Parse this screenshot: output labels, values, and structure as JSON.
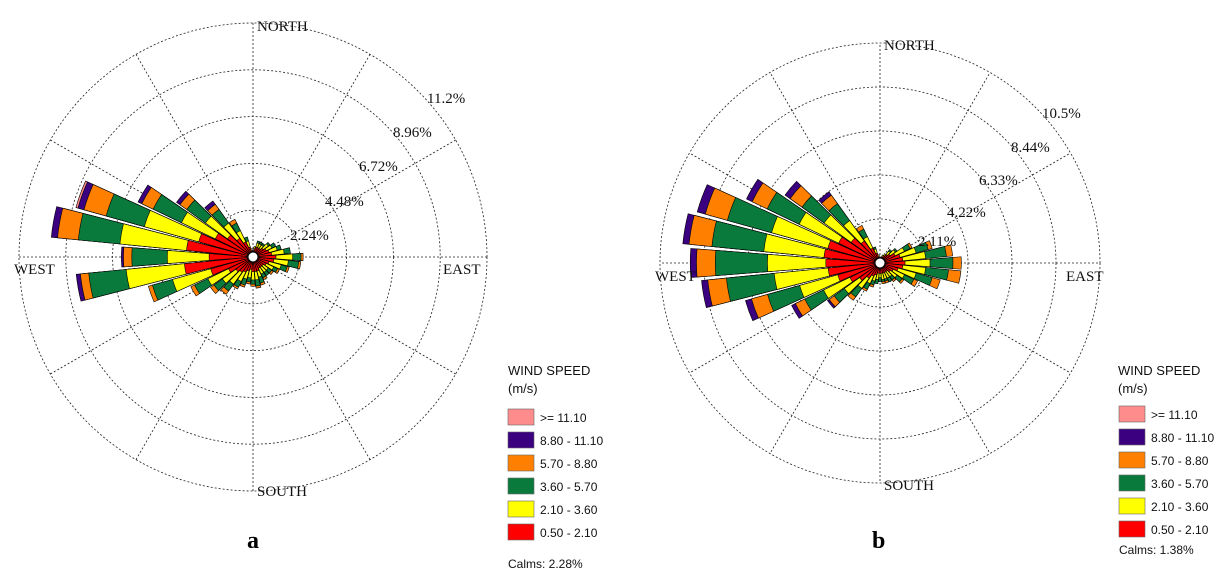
{
  "chart_data": [
    {
      "type": "windrose",
      "panel_label": "a",
      "direction_labels": {
        "north": "NORTH",
        "south": "SOUTH",
        "east": "EAST",
        "west": "WEST"
      },
      "ring_labels": [
        "2.24%",
        "4.48%",
        "6.72%",
        "8.96%",
        "11.2%"
      ],
      "rmax": 11.2,
      "legend_title": "WIND SPEED",
      "legend_unit": "(m/s)",
      "legend": [
        ">= 11.10",
        "8.80 - 11.10",
        "5.70 - 8.80",
        "3.60 - 5.70",
        "2.10 - 3.60",
        "0.50 - 2.10"
      ],
      "calms": "Calms: 2.28%",
      "sector_width_deg": 10,
      "sectors_cumulative_pct": [
        {
          "dir": 0,
          "cum": [
            0.3,
            0.3,
            0.3,
            0.3,
            0.3,
            0.3
          ]
        },
        {
          "dir": 10,
          "cum": [
            0.4,
            0.5,
            0.5,
            0.5,
            0.5,
            0.5
          ]
        },
        {
          "dir": 20,
          "cum": [
            0.5,
            0.7,
            0.8,
            0.8,
            0.8,
            0.8
          ]
        },
        {
          "dir": 30,
          "cum": [
            0.5,
            0.7,
            0.8,
            0.8,
            0.8,
            0.8
          ]
        },
        {
          "dir": 40,
          "cum": [
            0.5,
            0.7,
            0.8,
            0.8,
            0.8,
            0.8
          ]
        },
        {
          "dir": 50,
          "cum": [
            0.6,
            0.9,
            1.0,
            1.0,
            1.0,
            1.0
          ]
        },
        {
          "dir": 60,
          "cum": [
            0.7,
            1.0,
            1.2,
            1.2,
            1.2,
            1.2
          ]
        },
        {
          "dir": 70,
          "cum": [
            0.8,
            1.2,
            1.4,
            1.4,
            1.4,
            1.4
          ]
        },
        {
          "dir": 80,
          "cum": [
            0.9,
            1.5,
            1.8,
            1.8,
            1.8,
            1.8
          ]
        },
        {
          "dir": 90,
          "cum": [
            1.1,
            1.9,
            2.3,
            2.4,
            2.4,
            2.4
          ]
        },
        {
          "dir": 100,
          "cum": [
            1.0,
            1.7,
            2.2,
            2.3,
            2.3,
            2.3
          ]
        },
        {
          "dir": 110,
          "cum": [
            0.8,
            1.4,
            1.7,
            1.8,
            1.8,
            1.8
          ]
        },
        {
          "dir": 120,
          "cum": [
            0.7,
            1.1,
            1.3,
            1.4,
            1.4,
            1.4
          ]
        },
        {
          "dir": 130,
          "cum": [
            0.6,
            0.9,
            1.1,
            1.2,
            1.2,
            1.2
          ]
        },
        {
          "dir": 140,
          "cum": [
            0.6,
            0.9,
            1.1,
            1.1,
            1.1,
            1.1
          ]
        },
        {
          "dir": 150,
          "cum": [
            0.6,
            0.9,
            1.1,
            1.2,
            1.2,
            1.2
          ]
        },
        {
          "dir": 160,
          "cum": [
            0.7,
            1.0,
            1.3,
            1.4,
            1.4,
            1.4
          ]
        },
        {
          "dir": 170,
          "cum": [
            0.7,
            1.1,
            1.4,
            1.5,
            1.5,
            1.5
          ]
        },
        {
          "dir": 180,
          "cum": [
            0.7,
            1.1,
            1.3,
            1.4,
            1.4,
            1.4
          ]
        },
        {
          "dir": 190,
          "cum": [
            0.6,
            1.0,
            1.2,
            1.3,
            1.3,
            1.3
          ]
        },
        {
          "dir": 200,
          "cum": [
            0.7,
            1.1,
            1.4,
            1.5,
            1.5,
            1.5
          ]
        },
        {
          "dir": 210,
          "cum": [
            0.8,
            1.3,
            1.6,
            1.7,
            1.7,
            1.7
          ]
        },
        {
          "dir": 220,
          "cum": [
            0.9,
            1.6,
            2.0,
            2.2,
            2.2,
            2.2
          ]
        },
        {
          "dir": 230,
          "cum": [
            1.0,
            1.8,
            2.3,
            2.5,
            2.5,
            2.5
          ]
        },
        {
          "dir": 240,
          "cum": [
            1.3,
            2.4,
            3.1,
            3.3,
            3.3,
            3.3
          ]
        },
        {
          "dir": 250,
          "cum": [
            2.1,
            4.0,
            5.0,
            5.2,
            5.2,
            5.2
          ]
        },
        {
          "dir": 260,
          "cum": [
            3.3,
            6.1,
            7.9,
            8.3,
            8.5,
            8.5
          ]
        },
        {
          "dir": 270,
          "cum": [
            2.1,
            4.1,
            5.8,
            6.2,
            6.3,
            6.3
          ]
        },
        {
          "dir": 280,
          "cum": [
            3.2,
            6.4,
            8.4,
            9.4,
            9.7,
            9.7
          ]
        },
        {
          "dir": 290,
          "cum": [
            2.7,
            5.4,
            7.3,
            8.4,
            8.7,
            8.8
          ]
        },
        {
          "dir": 300,
          "cum": [
            2.0,
            3.8,
            5.3,
            5.9,
            6.1,
            6.1
          ]
        },
        {
          "dir": 310,
          "cum": [
            1.5,
            2.8,
            3.9,
            4.3,
            4.5,
            4.5
          ]
        },
        {
          "dir": 320,
          "cum": [
            1.1,
            2.0,
            2.8,
            3.1,
            3.3,
            3.3
          ]
        },
        {
          "dir": 330,
          "cum": [
            0.8,
            1.4,
            1.8,
            2.0,
            2.0,
            2.0
          ]
        },
        {
          "dir": 340,
          "cum": [
            0.5,
            0.8,
            1.0,
            1.0,
            1.0,
            1.0
          ]
        },
        {
          "dir": 350,
          "cum": [
            0.3,
            0.4,
            0.4,
            0.4,
            0.4,
            0.4
          ]
        }
      ]
    },
    {
      "type": "windrose",
      "panel_label": "b",
      "direction_labels": {
        "north": "NORTH",
        "south": "SOUTH",
        "east": "EAST",
        "west": "WEST"
      },
      "ring_labels": [
        "2.11%",
        "4.22%",
        "6.33%",
        "8.44%",
        "10.5%"
      ],
      "rmax": 10.55,
      "legend_title": "WIND SPEED",
      "legend_unit": "(m/s)",
      "legend": [
        ">= 11.10",
        "8.80 - 11.10",
        "5.70 - 8.80",
        "3.60 - 5.70",
        "2.10 - 3.60",
        "0.50 - 2.10"
      ],
      "calms": "Calms: 1.38%",
      "sector_width_deg": 10,
      "sectors_cumulative_pct": [
        {
          "dir": 0,
          "cum": [
            0.2,
            0.2,
            0.2,
            0.2,
            0.2,
            0.2
          ]
        },
        {
          "dir": 10,
          "cum": [
            0.3,
            0.3,
            0.3,
            0.3,
            0.3,
            0.3
          ]
        },
        {
          "dir": 20,
          "cum": [
            0.3,
            0.4,
            0.4,
            0.4,
            0.4,
            0.4
          ]
        },
        {
          "dir": 30,
          "cum": [
            0.4,
            0.5,
            0.5,
            0.5,
            0.5,
            0.5
          ]
        },
        {
          "dir": 40,
          "cum": [
            0.5,
            0.7,
            0.8,
            0.8,
            0.8,
            0.8
          ]
        },
        {
          "dir": 50,
          "cum": [
            0.6,
            0.9,
            1.0,
            1.0,
            1.0,
            1.0
          ]
        },
        {
          "dir": 60,
          "cum": [
            0.8,
            1.3,
            1.6,
            1.7,
            1.7,
            1.7
          ]
        },
        {
          "dir": 70,
          "cum": [
            1.0,
            1.8,
            2.4,
            2.6,
            2.6,
            2.6
          ]
        },
        {
          "dir": 80,
          "cum": [
            1.1,
            2.2,
            3.2,
            3.5,
            3.5,
            3.5
          ]
        },
        {
          "dir": 90,
          "cum": [
            1.2,
            2.4,
            3.5,
            3.9,
            3.9,
            3.9
          ]
        },
        {
          "dir": 100,
          "cum": [
            1.1,
            2.2,
            3.3,
            3.9,
            3.9,
            3.9
          ]
        },
        {
          "dir": 110,
          "cum": [
            0.9,
            1.8,
            2.6,
            3.0,
            3.0,
            3.0
          ]
        },
        {
          "dir": 120,
          "cum": [
            0.7,
            1.3,
            1.8,
            2.0,
            2.0,
            2.0
          ]
        },
        {
          "dir": 130,
          "cum": [
            0.6,
            1.0,
            1.3,
            1.4,
            1.4,
            1.4
          ]
        },
        {
          "dir": 140,
          "cum": [
            0.5,
            0.8,
            1.0,
            1.1,
            1.1,
            1.1
          ]
        },
        {
          "dir": 150,
          "cum": [
            0.5,
            0.8,
            1.0,
            1.0,
            1.0,
            1.0
          ]
        },
        {
          "dir": 160,
          "cum": [
            0.5,
            0.8,
            0.9,
            1.0,
            1.0,
            1.0
          ]
        },
        {
          "dir": 170,
          "cum": [
            0.5,
            0.8,
            0.9,
            1.0,
            1.0,
            1.0
          ]
        },
        {
          "dir": 180,
          "cum": [
            0.5,
            0.7,
            0.9,
            0.9,
            0.9,
            0.9
          ]
        },
        {
          "dir": 190,
          "cum": [
            0.5,
            0.8,
            1.0,
            1.0,
            1.0,
            1.0
          ]
        },
        {
          "dir": 200,
          "cum": [
            0.6,
            0.9,
            1.1,
            1.2,
            1.2,
            1.2
          ]
        },
        {
          "dir": 210,
          "cum": [
            0.7,
            1.1,
            1.4,
            1.5,
            1.5,
            1.5
          ]
        },
        {
          "dir": 220,
          "cum": [
            0.9,
            1.5,
            2.0,
            2.2,
            2.2,
            2.2
          ]
        },
        {
          "dir": 230,
          "cum": [
            1.2,
            2.1,
            2.7,
            3.0,
            3.1,
            3.1
          ]
        },
        {
          "dir": 240,
          "cum": [
            1.6,
            3.0,
            4.0,
            4.5,
            4.7,
            4.7
          ]
        },
        {
          "dir": 250,
          "cum": [
            2.1,
            4.0,
            5.6,
            6.4,
            6.7,
            6.7
          ]
        },
        {
          "dir": 260,
          "cum": [
            2.5,
            5.1,
            7.4,
            8.3,
            8.6,
            8.6
          ]
        },
        {
          "dir": 270,
          "cum": [
            2.6,
            5.4,
            7.9,
            8.8,
            9.1,
            9.1
          ]
        },
        {
          "dir": 280,
          "cum": [
            2.7,
            5.6,
            8.1,
            9.2,
            9.5,
            9.5
          ]
        },
        {
          "dir": 290,
          "cum": [
            2.6,
            5.4,
            7.6,
            8.7,
            9.1,
            9.1
          ]
        },
        {
          "dir": 300,
          "cum": [
            2.2,
            4.3,
            6.0,
            6.8,
            7.1,
            7.1
          ]
        },
        {
          "dir": 310,
          "cum": [
            1.7,
            3.3,
            4.6,
            5.3,
            5.6,
            5.6
          ]
        },
        {
          "dir": 320,
          "cum": [
            1.3,
            2.5,
            3.5,
            4.0,
            4.2,
            4.2
          ]
        },
        {
          "dir": 330,
          "cum": [
            0.8,
            1.4,
            1.8,
            2.0,
            2.0,
            2.0
          ]
        },
        {
          "dir": 340,
          "cum": [
            0.5,
            0.7,
            0.8,
            0.8,
            0.8,
            0.8
          ]
        },
        {
          "dir": 350,
          "cum": [
            0.3,
            0.4,
            0.4,
            0.4,
            0.4,
            0.4
          ]
        }
      ]
    }
  ],
  "colors": {
    "speed_bins": [
      "#ff0000",
      "#ffff00",
      "#0a7a3c",
      "#ff8000",
      "#3a0080",
      "#ff8c8c"
    ],
    "grid": "#222222",
    "bar_outline": "#000000"
  }
}
